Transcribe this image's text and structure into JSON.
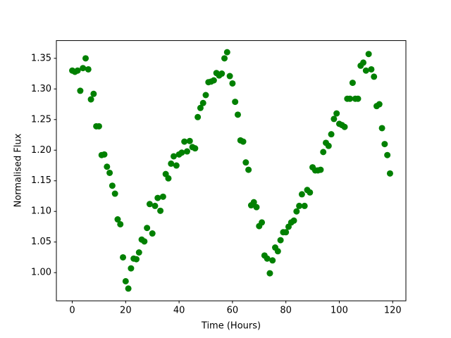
{
  "chart_data": {
    "type": "scatter",
    "x_label": "Time (Hours)",
    "y_label": "Normalised Flux",
    "color": "#008000",
    "x": [
      0,
      1,
      2,
      3,
      4,
      5,
      6,
      7,
      8,
      9,
      10,
      11,
      12,
      13,
      14,
      15,
      16,
      17,
      18,
      19,
      20,
      21,
      22,
      23,
      24,
      25,
      26,
      27,
      28,
      29,
      30,
      31,
      32,
      33,
      34,
      35,
      36,
      37,
      38,
      39,
      40,
      41,
      42,
      43,
      44,
      45,
      46,
      47,
      48,
      49,
      50,
      51,
      52,
      53,
      54,
      55,
      56,
      57,
      58,
      59,
      60,
      61,
      62,
      63,
      64,
      65,
      66,
      67,
      68,
      69,
      70,
      71,
      72,
      73,
      74,
      75,
      76,
      77,
      78,
      79,
      80,
      81,
      82,
      83,
      84,
      85,
      86,
      87,
      88,
      89,
      90,
      91,
      92,
      93,
      94,
      95,
      96,
      97,
      98,
      99,
      100,
      101,
      102,
      103,
      104,
      105,
      106,
      107,
      108,
      109,
      110,
      111,
      112,
      113,
      114,
      115,
      116,
      117,
      118,
      119
    ],
    "values": [
      1.33,
      1.328,
      1.33,
      1.297,
      1.334,
      1.35,
      1.332,
      1.283,
      1.292,
      1.239,
      1.239,
      1.192,
      1.193,
      1.173,
      1.163,
      1.142,
      1.129,
      1.087,
      1.079,
      1.025,
      0.986,
      0.974,
      1.007,
      1.023,
      1.022,
      1.033,
      1.054,
      1.051,
      1.073,
      1.112,
      1.064,
      1.109,
      1.122,
      1.101,
      1.124,
      1.161,
      1.154,
      1.178,
      1.19,
      1.175,
      1.193,
      1.196,
      1.214,
      1.198,
      1.215,
      1.205,
      1.203,
      1.254,
      1.269,
      1.277,
      1.29,
      1.311,
      1.312,
      1.314,
      1.326,
      1.322,
      1.325,
      1.35,
      1.36,
      1.321,
      1.309,
      1.279,
      1.258,
      1.216,
      1.214,
      1.18,
      1.168,
      1.11,
      1.115,
      1.107,
      1.076,
      1.082,
      1.028,
      1.023,
      0.999,
      1.02,
      1.041,
      1.035,
      1.053,
      1.066,
      1.066,
      1.075,
      1.082,
      1.085,
      1.1,
      1.109,
      1.128,
      1.109,
      1.135,
      1.131,
      1.172,
      1.167,
      1.167,
      1.168,
      1.197,
      1.212,
      1.207,
      1.226,
      1.251,
      1.26,
      1.243,
      1.241,
      1.238,
      1.284,
      1.284,
      1.31,
      1.284,
      1.284,
      1.338,
      1.343,
      1.33,
      1.357,
      1.332,
      1.32,
      1.272,
      1.275,
      1.236,
      1.21,
      1.192,
      1.162
    ],
    "xlim": [
      -5.95,
      124.95
    ],
    "ylim": [
      0.954,
      1.379
    ],
    "xticks": [
      0,
      20,
      40,
      60,
      80,
      100,
      120
    ],
    "yticks": [
      {
        "value": 1.0,
        "label": "1.00"
      },
      {
        "value": 1.05,
        "label": "1.05"
      },
      {
        "value": 1.1,
        "label": "1.10"
      },
      {
        "value": 1.15,
        "label": "1.15"
      },
      {
        "value": 1.2,
        "label": "1.20"
      },
      {
        "value": 1.25,
        "label": "1.25"
      },
      {
        "value": 1.3,
        "label": "1.30"
      },
      {
        "value": 1.35,
        "label": "1.35"
      }
    ]
  }
}
